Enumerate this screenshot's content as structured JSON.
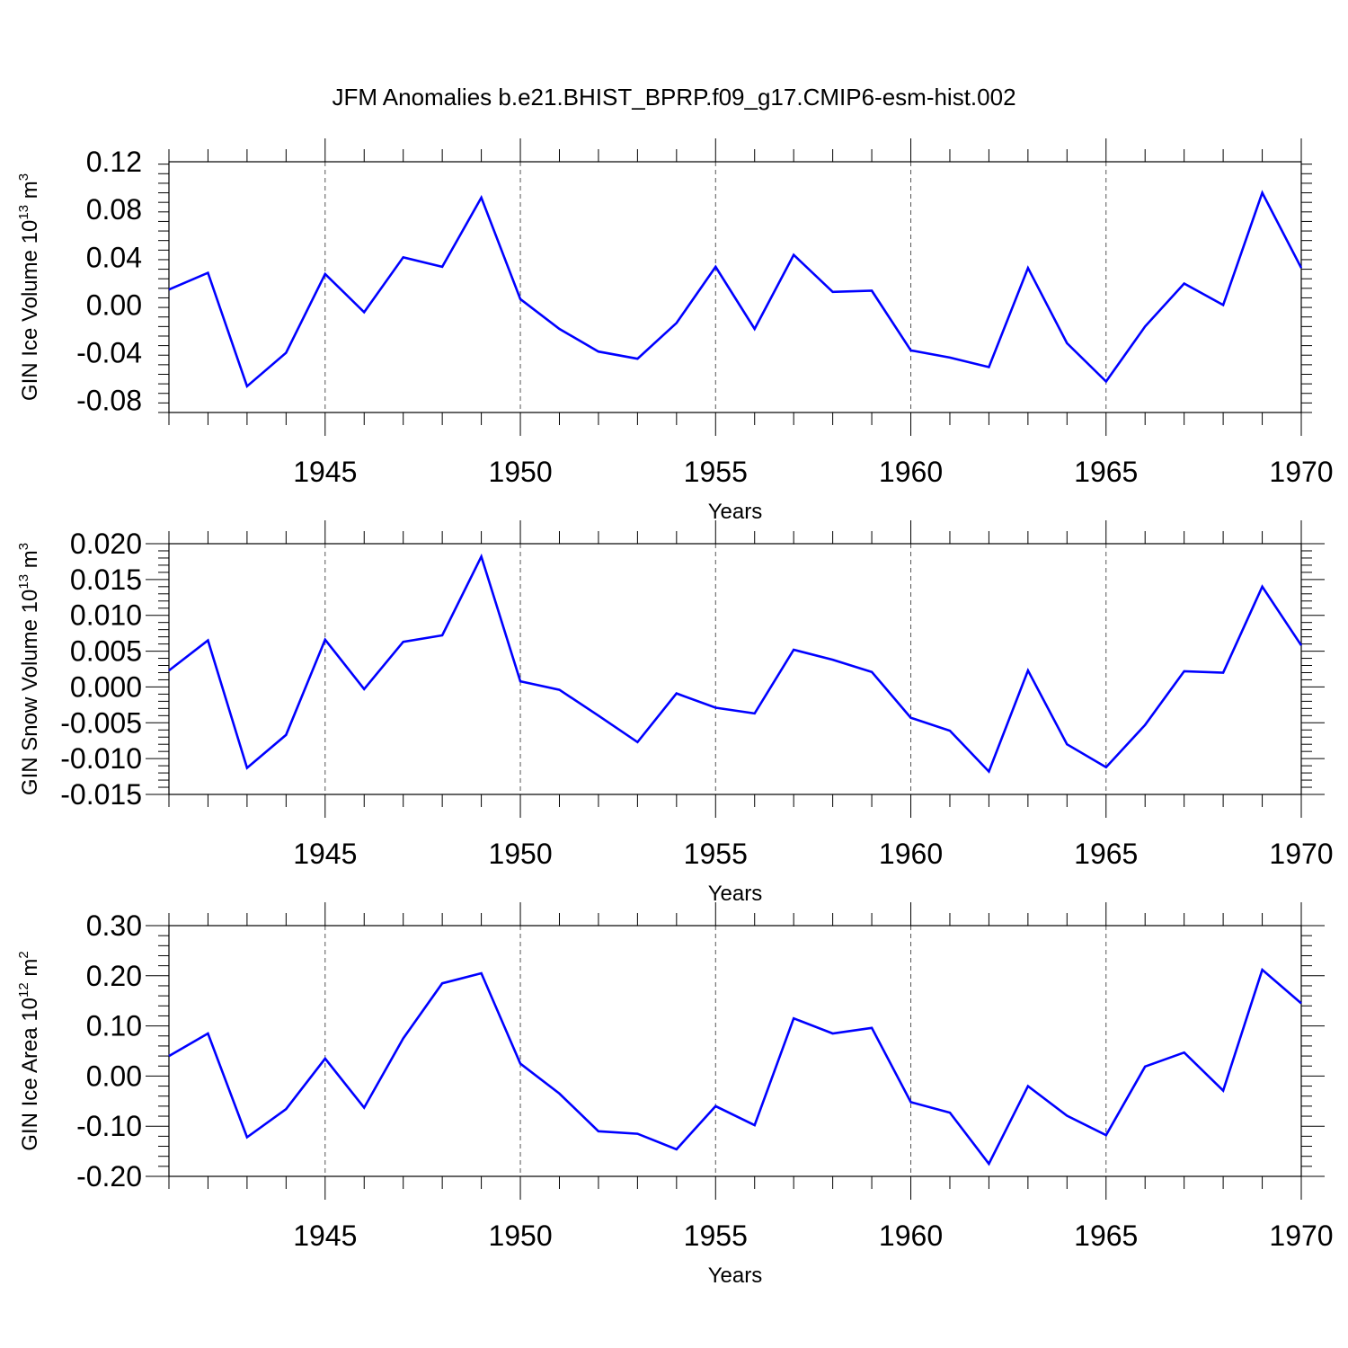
{
  "title": "JFM Anomalies b.e21.BHIST_BPRP.f09_g17.CMIP6-esm-hist.002",
  "colors": {
    "series": "#0000ff",
    "axes": "#000000",
    "grid": "#555555"
  },
  "chart_data": [
    {
      "type": "line",
      "xlabel": "Years",
      "ylabel": {
        "text": "GIN Ice Volume 10",
        "exp": "13",
        "unit": " m",
        "unit_exp": "3"
      },
      "xlim": [
        1941,
        1970
      ],
      "ylim": [
        -0.09,
        0.12
      ],
      "yticks": [
        0.12,
        0.08,
        0.04,
        0.0,
        -0.04,
        -0.08
      ],
      "ytick_labels": [
        "0.12",
        "0.08",
        "0.04",
        "0.00",
        "-0.04",
        "-0.08"
      ],
      "xticks": [
        1945,
        1950,
        1955,
        1960,
        1965,
        1970
      ],
      "xtick_labels": [
        "1945",
        "1950",
        "1955",
        "1960",
        "1965",
        "1970"
      ],
      "grid": "vertical dashed at major x ticks",
      "x": [
        1941,
        1942,
        1943,
        1944,
        1945,
        1946,
        1947,
        1948,
        1949,
        1950,
        1951,
        1952,
        1953,
        1954,
        1955,
        1956,
        1957,
        1958,
        1959,
        1960,
        1961,
        1962,
        1963,
        1964,
        1965,
        1966,
        1967,
        1968,
        1969,
        1970
      ],
      "y": [
        0.013,
        0.027,
        -0.068,
        -0.04,
        0.026,
        -0.006,
        0.04,
        0.032,
        0.09,
        0.005,
        -0.02,
        -0.039,
        -0.045,
        -0.015,
        0.032,
        -0.02,
        0.042,
        0.011,
        0.012,
        -0.038,
        -0.044,
        -0.052,
        0.031,
        -0.032,
        -0.064,
        -0.018,
        0.018,
        0.0,
        0.094,
        0.031
      ]
    },
    {
      "type": "line",
      "xlabel": "Years",
      "ylabel": {
        "text": "GIN Snow Volume 10",
        "exp": "13",
        "unit": " m",
        "unit_exp": "3"
      },
      "xlim": [
        1941,
        1970
      ],
      "ylim": [
        -0.015,
        0.02
      ],
      "yticks": [
        0.02,
        0.015,
        0.01,
        0.005,
        0.0,
        -0.005,
        -0.01,
        -0.015
      ],
      "ytick_labels": [
        "0.020",
        "0.015",
        "0.010",
        "0.005",
        "0.000",
        "-0.005",
        "-0.010",
        "-0.015"
      ],
      "xticks": [
        1945,
        1950,
        1955,
        1960,
        1965,
        1970
      ],
      "xtick_labels": [
        "1945",
        "1950",
        "1955",
        "1960",
        "1965",
        "1970"
      ],
      "grid": "vertical dashed at major x ticks",
      "x": [
        1941,
        1942,
        1943,
        1944,
        1945,
        1946,
        1947,
        1948,
        1949,
        1950,
        1951,
        1952,
        1953,
        1954,
        1955,
        1956,
        1957,
        1958,
        1959,
        1960,
        1961,
        1962,
        1963,
        1964,
        1965,
        1966,
        1967,
        1968,
        1969,
        1970
      ],
      "y": [
        0.0023,
        0.0065,
        -0.0113,
        -0.0067,
        0.0066,
        -0.0003,
        0.0063,
        0.0072,
        0.0182,
        0.0008,
        -0.0004,
        -0.004,
        -0.0077,
        -0.0009,
        -0.0029,
        -0.0037,
        0.0052,
        0.0038,
        0.0021,
        -0.0043,
        -0.0061,
        -0.0118,
        0.0023,
        -0.008,
        -0.0112,
        -0.0053,
        0.0022,
        0.002,
        0.014,
        0.0058
      ]
    },
    {
      "type": "line",
      "xlabel": "Years",
      "ylabel": {
        "text": "GIN Ice Area 10",
        "exp": "12",
        "unit": " m",
        "unit_exp": "2"
      },
      "xlim": [
        1941,
        1970
      ],
      "ylim": [
        -0.2,
        0.3
      ],
      "yticks": [
        0.3,
        0.2,
        0.1,
        0.0,
        -0.1,
        -0.2
      ],
      "ytick_labels": [
        "0.30",
        "0.20",
        "0.10",
        "0.00",
        "-0.10",
        "-0.20"
      ],
      "xticks": [
        1945,
        1950,
        1955,
        1960,
        1965,
        1970
      ],
      "xtick_labels": [
        "1945",
        "1950",
        "1955",
        "1960",
        "1965",
        "1970"
      ],
      "grid": "vertical dashed at major x ticks",
      "x": [
        1941,
        1942,
        1943,
        1944,
        1945,
        1946,
        1947,
        1948,
        1949,
        1950,
        1951,
        1952,
        1953,
        1954,
        1955,
        1956,
        1957,
        1958,
        1959,
        1960,
        1961,
        1962,
        1963,
        1964,
        1965,
        1966,
        1967,
        1968,
        1969,
        1970
      ],
      "y": [
        0.04,
        0.085,
        -0.122,
        -0.066,
        0.035,
        -0.063,
        0.075,
        0.185,
        0.205,
        0.025,
        -0.035,
        -0.11,
        -0.115,
        -0.146,
        -0.06,
        -0.098,
        0.115,
        0.085,
        0.096,
        -0.052,
        -0.073,
        -0.175,
        -0.02,
        -0.079,
        -0.118,
        0.019,
        0.047,
        -0.029,
        0.212,
        0.145
      ]
    }
  ]
}
